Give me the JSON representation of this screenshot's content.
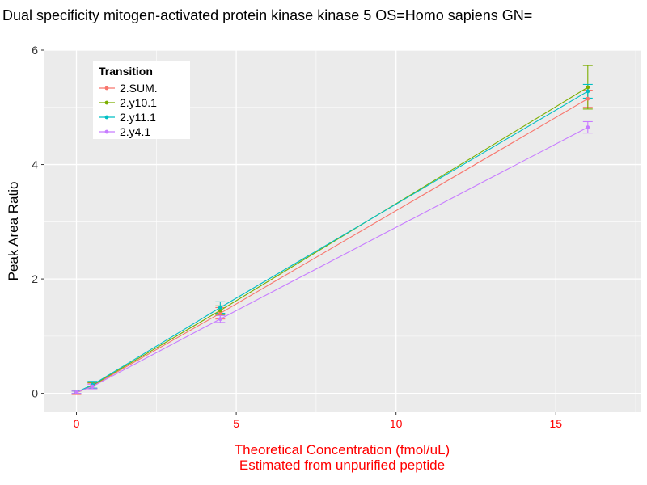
{
  "chart_data": {
    "type": "line",
    "title": "l Dual specificity mitogen-activated protein kinase kinase 5 OS=Homo sapiens GN=",
    "xlabel": "Theoretical Concentration (fmol/uL)",
    "xlabel2": "Estimated from unpurified peptide",
    "ylabel": "Peak Area Ratio",
    "legend_title": "Transition",
    "x": [
      0,
      0.5,
      4.5,
      16
    ],
    "xticks": [
      0,
      5,
      10,
      15
    ],
    "yticks": [
      0,
      2,
      4,
      6
    ],
    "xminor": [
      2.5,
      7.5,
      12.5,
      17.5
    ],
    "yminor": [
      1,
      3,
      5
    ],
    "xlim": [
      -1.0,
      17.65
    ],
    "ylim": [
      -0.33,
      6.0
    ],
    "panel_bg": "#EBEBEB",
    "grid_color": "#FFFFFF",
    "title_color": "#000000",
    "x_axis_color": "#FF0000",
    "y_axis_color": "#000000",
    "x_tick_color": "#FF0000",
    "y_tick_color": "#333333",
    "tick_mark_color": "#333333",
    "legend_bg": "#FFFFFF",
    "legend_position": "top-left-inside",
    "grid": true,
    "series": [
      {
        "name": "2.SUM.",
        "color": "#F8766D",
        "values": [
          0.01,
          0.13,
          1.4,
          5.15
        ],
        "errors": [
          0.03,
          0.05,
          0.1,
          0.15
        ]
      },
      {
        "name": "2.y10.1",
        "color": "#7CAE00",
        "values": [
          0.02,
          0.14,
          1.45,
          5.35
        ],
        "errors": [
          0.02,
          0.05,
          0.08,
          0.38
        ]
      },
      {
        "name": "2.y11.1",
        "color": "#00BFC4",
        "values": [
          0.02,
          0.15,
          1.5,
          5.28
        ],
        "errors": [
          0.02,
          0.06,
          0.1,
          0.12
        ]
      },
      {
        "name": "2.y4.1",
        "color": "#C77CFF",
        "values": [
          0.02,
          0.12,
          1.3,
          4.65
        ],
        "errors": [
          0.02,
          0.04,
          0.06,
          0.1
        ]
      }
    ]
  }
}
